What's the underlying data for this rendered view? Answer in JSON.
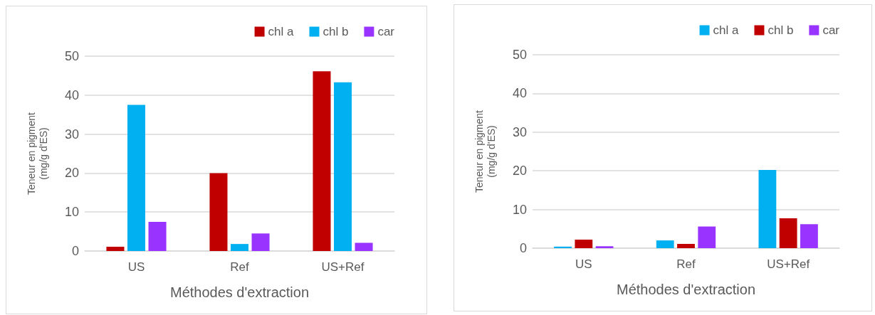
{
  "chart_data": [
    {
      "type": "bar",
      "xlabel": "Méthodes d'extraction",
      "ylabel": "Teneur en pigment\n(mg/g d'ES)",
      "categories": [
        "US",
        "Ref",
        "US+Ref"
      ],
      "series": [
        {
          "name": "chl a",
          "color": "#c00000",
          "values": [
            1.1,
            20.0,
            46.1
          ]
        },
        {
          "name": "chl b",
          "color": "#00b0f0",
          "values": [
            37.5,
            1.8,
            43.3
          ]
        },
        {
          "name": "car",
          "color": "#9933ff",
          "values": [
            7.5,
            4.5,
            2.1
          ]
        }
      ],
      "ylim": [
        0,
        50
      ],
      "yticks": [
        0,
        10,
        20,
        30,
        40,
        50
      ],
      "grid": "y",
      "legend": "top right"
    },
    {
      "type": "bar",
      "xlabel": "Méthodes d'extraction",
      "ylabel": "Teneur en pigment\n(mg/g d'ES)",
      "categories": [
        "US",
        "Ref",
        "US+Ref"
      ],
      "series": [
        {
          "name": "chl a",
          "color": "#00b0f0",
          "values": [
            0.4,
            2.0,
            20.2
          ]
        },
        {
          "name": "chl b",
          "color": "#c00000",
          "values": [
            2.2,
            1.1,
            7.7
          ]
        },
        {
          "name": "car",
          "color": "#9933ff",
          "values": [
            0.5,
            5.6,
            6.2
          ]
        }
      ],
      "ylim": [
        0,
        50
      ],
      "yticks": [
        0,
        10,
        20,
        30,
        40,
        50
      ],
      "grid": "y",
      "legend": "top right"
    }
  ]
}
